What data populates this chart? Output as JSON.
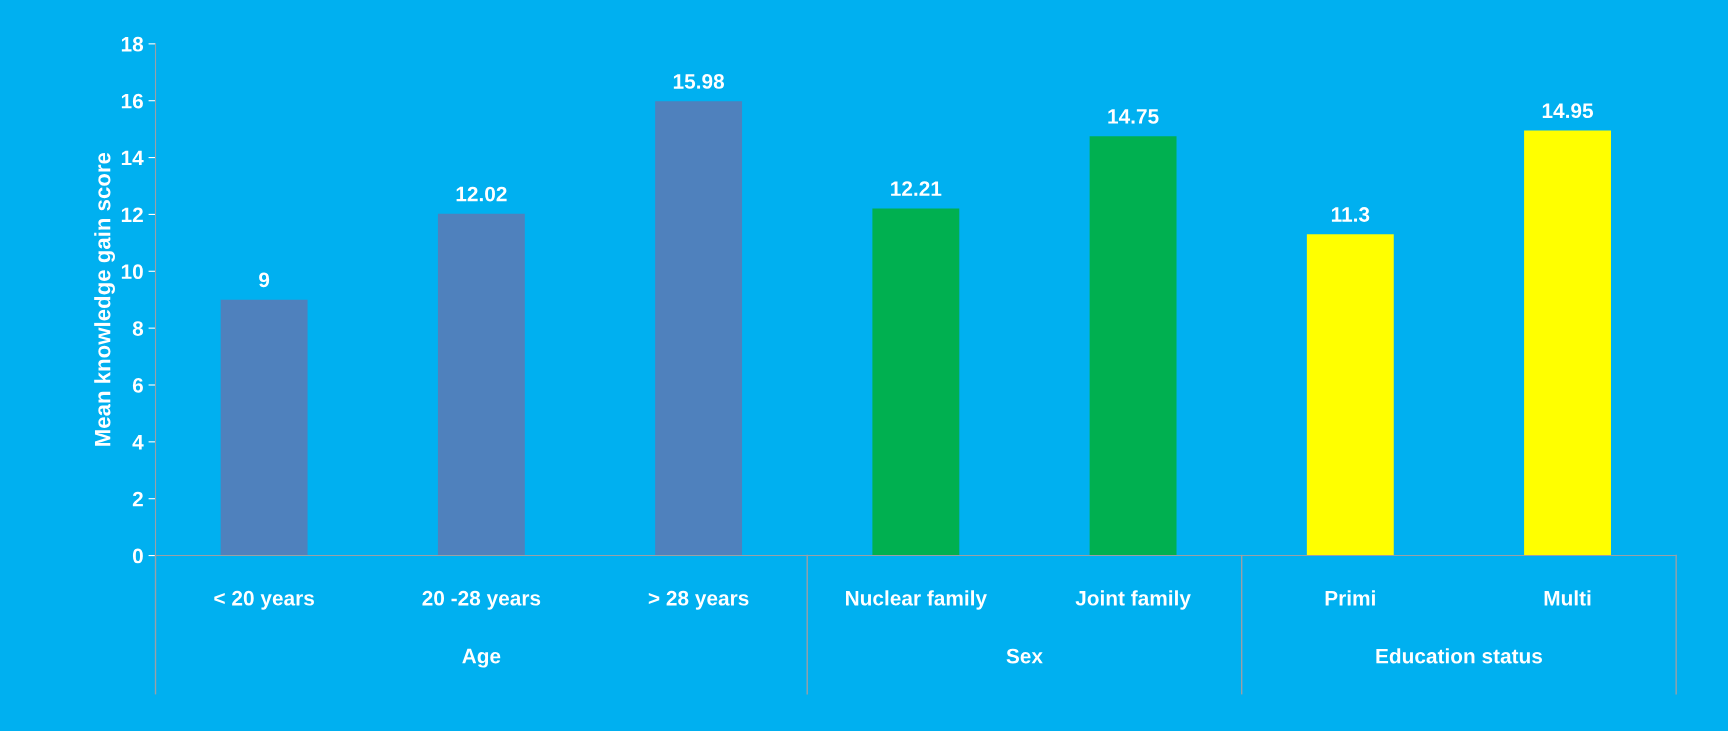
{
  "chart_data": {
    "type": "bar",
    "ylabel": "Mean knowledge gain score",
    "categories": [
      "< 20 years",
      "20 -28 years",
      "> 28 years",
      "Nuclear family",
      "Joint family",
      "Primi",
      "Multi"
    ],
    "values": [
      9,
      12.02,
      15.98,
      12.21,
      14.75,
      11.3,
      14.95
    ],
    "colors": [
      "#4f81bd",
      "#4f81bd",
      "#4f81bd",
      "#00b050",
      "#00b050",
      "#ffff00",
      "#ffff00"
    ],
    "ylim": [
      0,
      18
    ],
    "yticks": [
      0,
      2,
      4,
      6,
      8,
      10,
      12,
      14,
      16,
      18
    ],
    "data_labels": true,
    "grid": false,
    "legend": false,
    "annotations": [
      "Age",
      "Sex",
      "Education status"
    ]
  }
}
